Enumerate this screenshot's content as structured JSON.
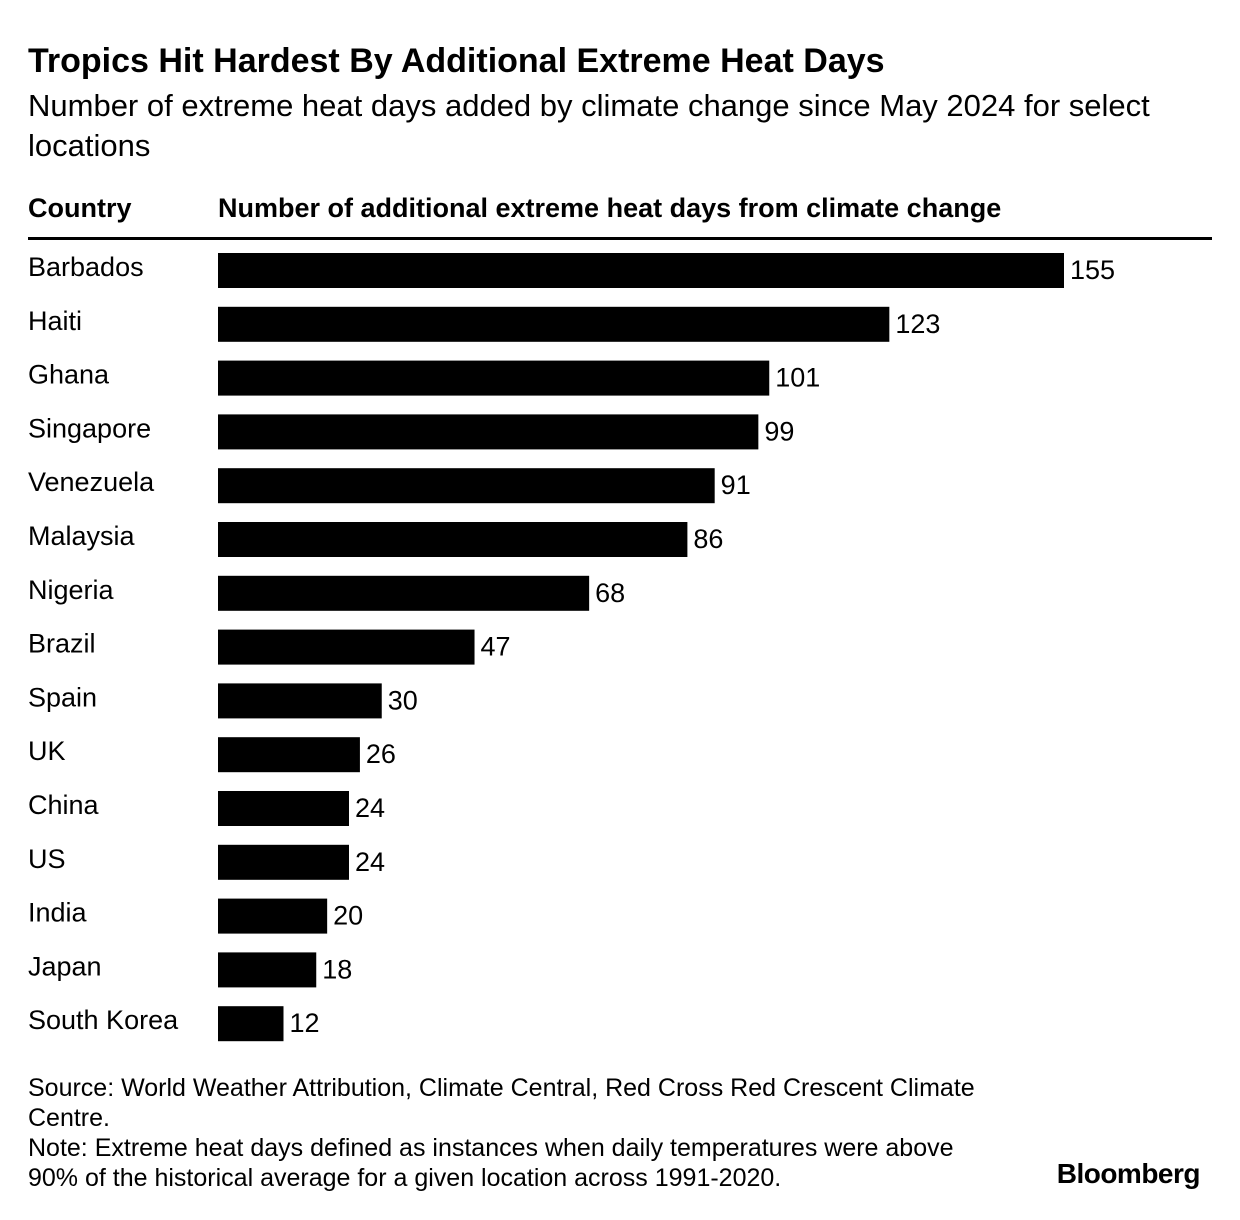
{
  "header": {
    "title": "Tropics Hit Hardest By Additional Extreme Heat Days",
    "subtitle": "Number of extreme heat days added by climate change since May 2024 for select locations",
    "column_country": "Country",
    "column_value": "Number of additional extreme heat days from climate change"
  },
  "chart_data": {
    "type": "bar",
    "orientation": "horizontal",
    "categories": [
      "Barbados",
      "Haiti",
      "Ghana",
      "Singapore",
      "Venezuela",
      "Malaysia",
      "Nigeria",
      "Brazil",
      "Spain",
      "UK",
      "China",
      "US",
      "India",
      "Japan",
      "South Korea"
    ],
    "values": [
      155,
      123,
      101,
      99,
      91,
      86,
      68,
      47,
      30,
      26,
      24,
      24,
      20,
      18,
      12
    ],
    "title": "Tropics Hit Hardest By Additional Extreme Heat Days",
    "subtitle": "Number of extreme heat days added by climate change since May 2024 for select locations",
    "xlabel": "Number of additional extreme heat days from climate change",
    "ylabel": "Country",
    "xlim": [
      0,
      155
    ],
    "grid": false,
    "legend": "none",
    "bar_color": "#000000"
  },
  "footer": {
    "source": "Source: World Weather Attribution, Climate Central, Red Cross Red Crescent Climate Centre.",
    "note": "Note: Extreme heat days defined as instances when daily temperatures were above 90% of the historical average for a given location across 1991-2020.",
    "brand": "Bloomberg"
  }
}
